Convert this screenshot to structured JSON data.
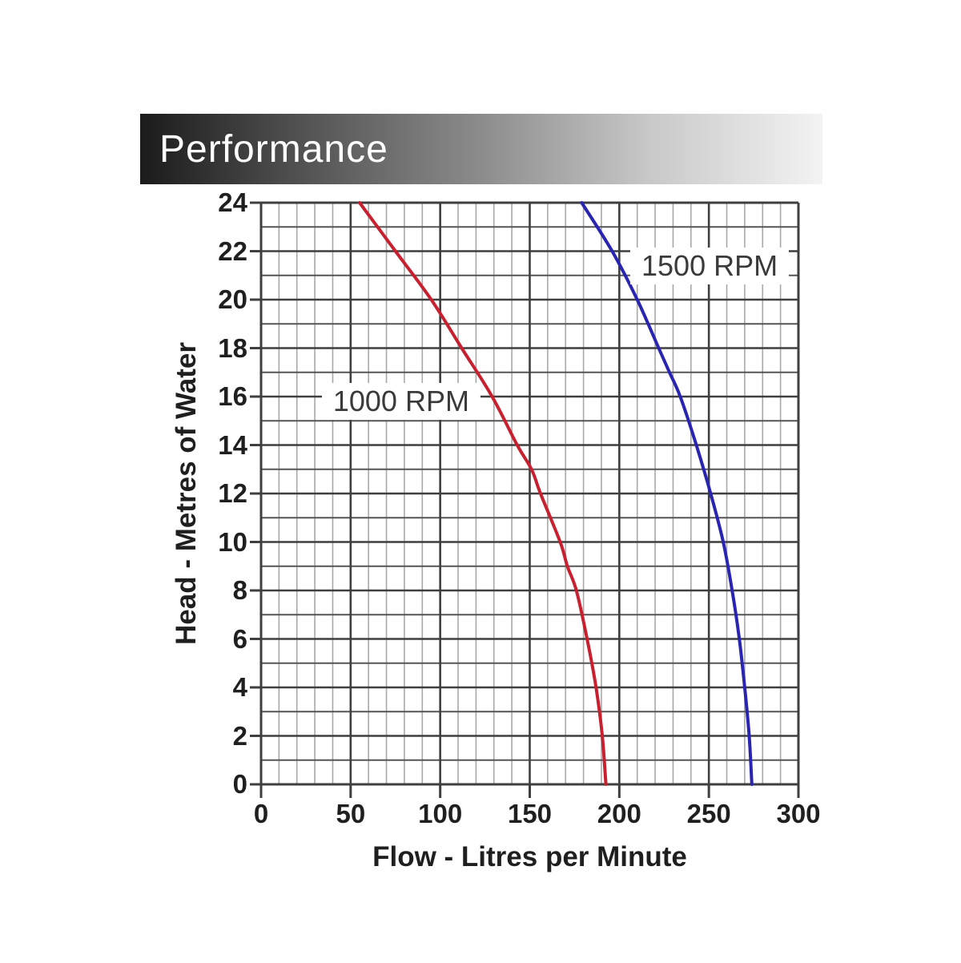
{
  "header": {
    "title": "Performance",
    "text_color": "#ffffff",
    "gradient_stops": [
      "#1b1b1b",
      "#555555",
      "#8c8c8c",
      "#c9c9c9",
      "#f3f3f3"
    ]
  },
  "chart_data": {
    "type": "line",
    "title": "Performance",
    "xlabel": "Flow - Litres per Minute",
    "ylabel": "Head - Metres of Water",
    "xlim": [
      0,
      300
    ],
    "ylim": [
      0,
      24
    ],
    "x_ticks": [
      0,
      50,
      100,
      150,
      200,
      250,
      300
    ],
    "y_ticks": [
      0,
      2,
      4,
      6,
      8,
      10,
      12,
      14,
      16,
      18,
      20,
      22,
      24
    ],
    "x_minor_step": 10,
    "y_minor_step": 1,
    "grid": "on",
    "legend_position": "inline-labels",
    "colors": {
      "major_grid": "#3f3f3f",
      "minor_grid_h": "#555555",
      "minor_grid_v": "#a8a8a8",
      "axis_text": "#1f1f1f"
    },
    "series": [
      {
        "name": "1000 RPM",
        "color": "#c8202f",
        "label_pos": {
          "flow": 78.2,
          "head": 15.8
        },
        "points": [
          [
            55,
            24
          ],
          [
            75,
            22
          ],
          [
            95,
            20
          ],
          [
            112,
            18
          ],
          [
            129,
            16
          ],
          [
            143,
            14
          ],
          [
            151,
            13
          ],
          [
            156,
            12
          ],
          [
            167,
            10
          ],
          [
            171,
            9
          ],
          [
            176,
            8
          ],
          [
            182,
            6
          ],
          [
            187,
            4
          ],
          [
            190.5,
            2
          ],
          [
            192.5,
            0
          ]
        ]
      },
      {
        "name": "1500 RPM",
        "color": "#2a24b2",
        "label_pos": {
          "flow": 250.4,
          "head": 21.4
        },
        "points": [
          [
            179,
            24
          ],
          [
            196,
            22
          ],
          [
            210,
            20
          ],
          [
            222,
            18
          ],
          [
            228,
            17
          ],
          [
            234,
            16
          ],
          [
            243,
            14
          ],
          [
            251,
            12
          ],
          [
            258,
            10
          ],
          [
            263,
            8
          ],
          [
            267,
            6
          ],
          [
            270,
            4
          ],
          [
            272.5,
            2
          ],
          [
            274,
            0
          ]
        ]
      }
    ]
  }
}
